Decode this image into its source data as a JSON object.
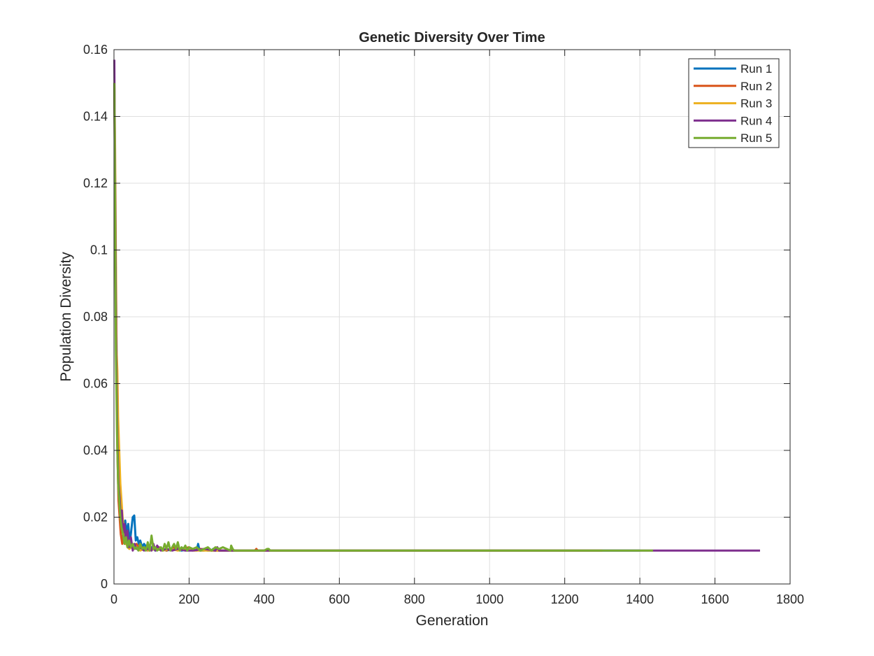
{
  "chart_data": {
    "type": "line",
    "title": "Genetic Diversity Over Time",
    "xlabel": "Generation",
    "ylabel": "Population Diversity",
    "xlim": [
      0,
      1800
    ],
    "ylim": [
      0,
      0.16
    ],
    "xticks": [
      0,
      200,
      400,
      600,
      800,
      1000,
      1200,
      1400,
      1600,
      1800
    ],
    "xtick_labels": [
      "0",
      "200",
      "400",
      "600",
      "800",
      "1000",
      "1200",
      "1400",
      "1600",
      "1800"
    ],
    "yticks": [
      0,
      0.02,
      0.04,
      0.06,
      0.08,
      0.1,
      0.12,
      0.14,
      0.16
    ],
    "ytick_labels": [
      "0",
      "0.02",
      "0.04",
      "0.06",
      "0.08",
      "0.1",
      "0.12",
      "0.14",
      "0.16"
    ],
    "grid": true,
    "legend_position": "top-right",
    "series": [
      {
        "name": "Run 1",
        "color": "#0072BD",
        "x": [
          1,
          3,
          6,
          9,
          12,
          15,
          18,
          22,
          26,
          30,
          34,
          38,
          42,
          46,
          50,
          54,
          58,
          62,
          66,
          70,
          75,
          80,
          90,
          100,
          110,
          125,
          140,
          160,
          180,
          200,
          220,
          224,
          228,
          240,
          244,
          248,
          260,
          264,
          268,
          280,
          300,
          1400
        ],
        "y": [
          0.15,
          0.12,
          0.08,
          0.05,
          0.03,
          0.025,
          0.02,
          0.018,
          0.016,
          0.019,
          0.015,
          0.018,
          0.012,
          0.016,
          0.02,
          0.0205,
          0.013,
          0.014,
          0.012,
          0.013,
          0.011,
          0.012,
          0.0105,
          0.011,
          0.01,
          0.0105,
          0.01,
          0.0105,
          0.01,
          0.0105,
          0.01,
          0.012,
          0.01,
          0.01,
          0.0105,
          0.01,
          0.01,
          0.0105,
          0.01,
          0.01,
          0.01,
          0.01
        ]
      },
      {
        "name": "Run 2",
        "color": "#D95319",
        "x": [
          1,
          3,
          6,
          9,
          12,
          15,
          18,
          22,
          26,
          30,
          35,
          40,
          45,
          50,
          60,
          70,
          80,
          90,
          100,
          120,
          140,
          160,
          180,
          200,
          215,
          230,
          260,
          300,
          340,
          375,
          379,
          383,
          400,
          1300
        ],
        "y": [
          0.15,
          0.11,
          0.07,
          0.04,
          0.025,
          0.02,
          0.015,
          0.012,
          0.017,
          0.012,
          0.014,
          0.011,
          0.013,
          0.011,
          0.012,
          0.0105,
          0.011,
          0.01,
          0.0105,
          0.011,
          0.01,
          0.011,
          0.0105,
          0.011,
          0.01,
          0.0105,
          0.01,
          0.01,
          0.01,
          0.01,
          0.0105,
          0.01,
          0.01,
          0.01
        ]
      },
      {
        "name": "Run 3",
        "color": "#EDB120",
        "x": [
          1,
          3,
          5,
          7,
          9,
          11,
          14,
          17,
          20,
          23,
          27,
          31,
          36,
          41,
          46,
          52,
          60,
          70,
          80,
          95,
          110,
          130,
          150,
          170,
          190,
          210,
          250,
          300,
          350,
          420,
          1300
        ],
        "y": [
          0.15,
          0.13,
          0.1,
          0.07,
          0.064,
          0.05,
          0.04,
          0.03,
          0.025,
          0.02,
          0.016,
          0.013,
          0.011,
          0.0105,
          0.011,
          0.0105,
          0.011,
          0.01,
          0.0105,
          0.01,
          0.0105,
          0.01,
          0.0105,
          0.01,
          0.0105,
          0.01,
          0.01,
          0.01,
          0.01,
          0.01,
          0.01
        ]
      },
      {
        "name": "Run 4",
        "color": "#7E2F8E",
        "x": [
          1,
          3,
          6,
          9,
          12,
          15,
          18,
          21,
          24,
          28,
          32,
          36,
          40,
          45,
          50,
          55,
          60,
          70,
          80,
          90,
          100,
          105,
          110,
          115,
          125,
          140,
          155,
          170,
          190,
          210,
          240,
          270,
          275,
          280,
          300,
          400,
          800,
          1200,
          1720
        ],
        "y": [
          0.157,
          0.12,
          0.07,
          0.044,
          0.03,
          0.026,
          0.02,
          0.022,
          0.015,
          0.018,
          0.013,
          0.016,
          0.011,
          0.014,
          0.01,
          0.012,
          0.0105,
          0.011,
          0.01,
          0.0105,
          0.01,
          0.012,
          0.01,
          0.0115,
          0.01,
          0.0105,
          0.01,
          0.0105,
          0.01,
          0.01,
          0.0105,
          0.01,
          0.011,
          0.01,
          0.01,
          0.01,
          0.01,
          0.01,
          0.01
        ]
      },
      {
        "name": "Run 5",
        "color": "#77AC30",
        "x": [
          1,
          3,
          5,
          8,
          11,
          14,
          17,
          20,
          24,
          28,
          32,
          36,
          40,
          45,
          50,
          55,
          60,
          65,
          70,
          75,
          80,
          85,
          90,
          95,
          100,
          105,
          110,
          115,
          120,
          125,
          130,
          135,
          140,
          145,
          150,
          155,
          160,
          165,
          170,
          175,
          180,
          185,
          190,
          195,
          200,
          210,
          220,
          230,
          240,
          250,
          260,
          270,
          280,
          290,
          300,
          310,
          312,
          316,
          320,
          360,
          400,
          408,
          412,
          416,
          430,
          800,
          1200,
          1435
        ],
        "y": [
          0.15,
          0.11,
          0.07,
          0.045,
          0.03,
          0.025,
          0.02,
          0.017,
          0.015,
          0.012,
          0.014,
          0.011,
          0.013,
          0.011,
          0.012,
          0.0105,
          0.011,
          0.01,
          0.012,
          0.0105,
          0.011,
          0.01,
          0.0125,
          0.01,
          0.0145,
          0.0105,
          0.011,
          0.01,
          0.0105,
          0.011,
          0.01,
          0.012,
          0.0105,
          0.0125,
          0.01,
          0.011,
          0.012,
          0.0105,
          0.0125,
          0.01,
          0.011,
          0.0105,
          0.0115,
          0.01,
          0.011,
          0.0105,
          0.011,
          0.01,
          0.0105,
          0.011,
          0.01,
          0.011,
          0.0105,
          0.011,
          0.0105,
          0.01,
          0.0115,
          0.0105,
          0.01,
          0.01,
          0.01,
          0.0105,
          0.0105,
          0.01,
          0.01,
          0.01,
          0.01,
          0.01
        ]
      }
    ]
  }
}
